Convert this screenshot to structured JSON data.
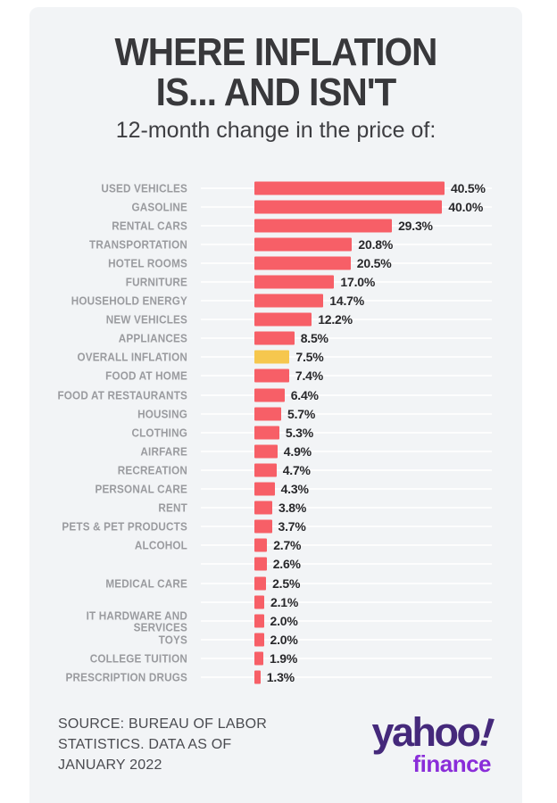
{
  "page": {
    "background": "#ffffff",
    "card_background": "#f2f4f6"
  },
  "header": {
    "title_line1": "WHERE INFLATION",
    "title_line2": "IS... AND ISN'T",
    "subtitle": "12-month change in the price of:"
  },
  "chart_data": {
    "type": "bar",
    "orientation": "horizontal",
    "title": "WHERE INFLATION IS... AND ISN'T",
    "subtitle": "12-month change in the price of:",
    "value_unit": "percent",
    "xlim": [
      0,
      40.5
    ],
    "grid": true,
    "legend": "none",
    "bar_color": "#f75f67",
    "highlight_bar_color": "#f6c74e",
    "label_color": "#9a9b9f",
    "value_color": "#28282b",
    "rows": [
      {
        "label": "USED VEHICLES",
        "value": 40.5,
        "display": "40.5%",
        "highlight": false
      },
      {
        "label": "GASOLINE",
        "value": 40.0,
        "display": "40.0%",
        "highlight": false
      },
      {
        "label": "RENTAL CARS",
        "value": 29.3,
        "display": "29.3%",
        "highlight": false
      },
      {
        "label": "TRANSPORTATION",
        "value": 20.8,
        "display": "20.8%",
        "highlight": false
      },
      {
        "label": "HOTEL ROOMS",
        "value": 20.5,
        "display": "20.5%",
        "highlight": false
      },
      {
        "label": "FURNITURE",
        "value": 17.0,
        "display": "17.0%",
        "highlight": false
      },
      {
        "label": "HOUSEHOLD ENERGY",
        "value": 14.7,
        "display": "14.7%",
        "highlight": false
      },
      {
        "label": "NEW VEHICLES",
        "value": 12.2,
        "display": "12.2%",
        "highlight": false
      },
      {
        "label": "APPLIANCES",
        "value": 8.5,
        "display": "8.5%",
        "highlight": false
      },
      {
        "label": "OVERALL INFLATION",
        "value": 7.5,
        "display": "7.5%",
        "highlight": true
      },
      {
        "label": "FOOD AT HOME",
        "value": 7.4,
        "display": "7.4%",
        "highlight": false
      },
      {
        "label": "FOOD AT RESTAURANTS",
        "value": 6.4,
        "display": "6.4%",
        "highlight": false
      },
      {
        "label": "HOUSING",
        "value": 5.7,
        "display": "5.7%",
        "highlight": false
      },
      {
        "label": "CLOTHING",
        "value": 5.3,
        "display": "5.3%",
        "highlight": false
      },
      {
        "label": "AIRFARE",
        "value": 4.9,
        "display": "4.9%",
        "highlight": false
      },
      {
        "label": "RECREATION",
        "value": 4.7,
        "display": "4.7%",
        "highlight": false
      },
      {
        "label": "PERSONAL CARE",
        "value": 4.3,
        "display": "4.3%",
        "highlight": false
      },
      {
        "label": "RENT",
        "value": 3.8,
        "display": "3.8%",
        "highlight": false
      },
      {
        "label": "PETS & PET PRODUCTS",
        "value": 3.7,
        "display": "3.7%",
        "highlight": false
      },
      {
        "label": "ALCOHOL",
        "value": 2.7,
        "display": "2.7%",
        "highlight": false
      },
      {
        "label": "",
        "value": 2.6,
        "display": "2.6%",
        "highlight": false
      },
      {
        "label": "MEDICAL CARE",
        "value": 2.5,
        "display": "2.5%",
        "highlight": false
      },
      {
        "label": "IT HARDWARE AND SERVICES",
        "label_lines": [
          "IT HARDWARE AND",
          "SERVICES"
        ],
        "value": 2.1,
        "display": "2.1%",
        "highlight": false
      },
      {
        "label": "",
        "value": 2.0,
        "display": "2.0%",
        "highlight": false
      },
      {
        "label": "TOYS",
        "value": 2.0,
        "display": "2.0%",
        "highlight": false
      },
      {
        "label": "COLLEGE TUITION",
        "value": 1.9,
        "display": "1.9%",
        "highlight": false
      },
      {
        "label": "PRESCRIPTION DRUGS",
        "value": 1.3,
        "display": "1.3%",
        "highlight": false
      }
    ]
  },
  "footer": {
    "source_lines": [
      "SOURCE: BUREAU OF LABOR",
      "STATISTICS. DATA AS OF",
      "JANUARY 2022"
    ],
    "logo": {
      "brand": "yahoo",
      "exclaim": "!",
      "sub": "finance",
      "brand_color": "#45297b",
      "sub_color": "#8a2dd9"
    }
  }
}
